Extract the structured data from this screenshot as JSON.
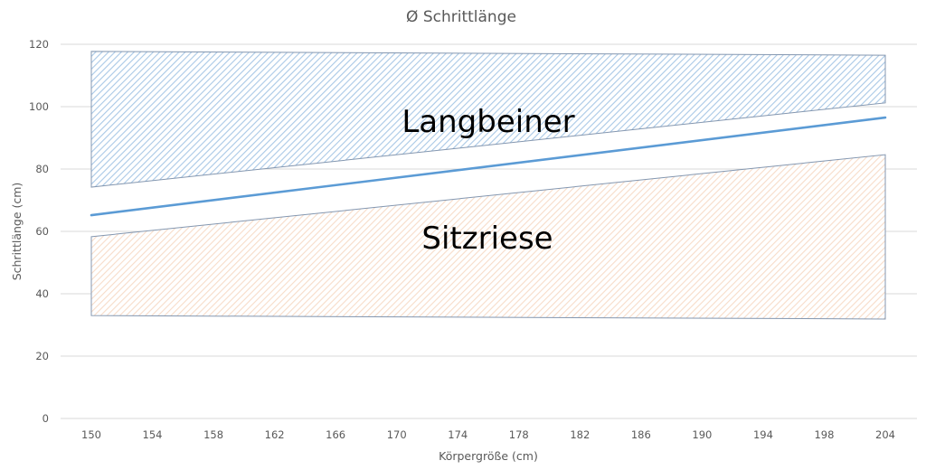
{
  "chart_data": {
    "type": "area",
    "title": "Ø Schrittlänge",
    "xlabel": "Körpergröße (cm)",
    "ylabel": "Schrittlänge (cm)",
    "categories": [
      "150",
      "154",
      "158",
      "162",
      "166",
      "170",
      "174",
      "178",
      "182",
      "186",
      "190",
      "194",
      "198",
      "204"
    ],
    "ylim": [
      0,
      120
    ],
    "yticks": [
      0,
      20,
      40,
      60,
      80,
      100,
      120
    ],
    "grid": true,
    "legend": "none",
    "series": [
      {
        "name": "Ø Schrittlänge",
        "kind": "line",
        "color": "#5b9bd5",
        "start": {
          "x": "150",
          "y": 65.2
        },
        "end": {
          "x": "204",
          "y": 96.5
        }
      },
      {
        "name": "Langbeiner",
        "kind": "band",
        "fill": "#9dc3e6",
        "hatch": "diagonal",
        "upper": {
          "start": 117.7,
          "end": 116.5
        },
        "lower": {
          "start": 74.2,
          "end": 101.2
        }
      },
      {
        "name": "Sitzriese",
        "kind": "band",
        "fill": "#f8cbad",
        "hatch": "diagonal",
        "upper": {
          "start": 58.3,
          "end": 84.6
        },
        "lower": {
          "start": 33.0,
          "end": 31.9
        }
      }
    ],
    "annotations": [
      {
        "text": "Langbeiner",
        "x_center": "174",
        "y": 96
      },
      {
        "text": "Sitzriese",
        "x_center": "174",
        "y": 57
      }
    ]
  },
  "labels": {
    "title": "Ø Schrittlänge",
    "xlabel": "Körpergröße (cm)",
    "ylabel": "Schrittlänge (cm)",
    "annot_upper": "Langbeiner",
    "annot_lower": "Sitzriese"
  }
}
